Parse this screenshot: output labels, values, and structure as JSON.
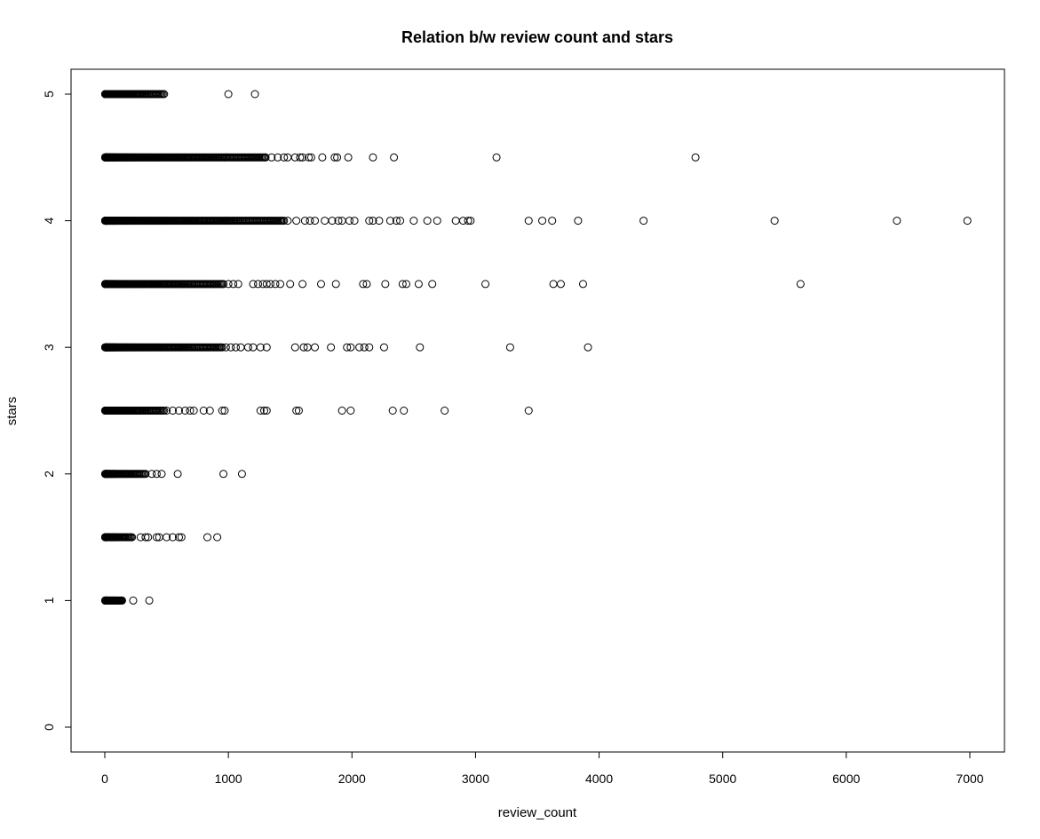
{
  "chart_data": {
    "type": "scatter",
    "title": "Relation b/w review count and stars",
    "xlabel": "review_count",
    "ylabel": "stars",
    "xlim": [
      0,
      7000
    ],
    "ylim": [
      0,
      5
    ],
    "xticks": [
      "0",
      "1000",
      "2000",
      "3000",
      "4000",
      "5000",
      "6000",
      "7000"
    ],
    "yticks": [
      "0",
      "1",
      "2",
      "3",
      "4",
      "5"
    ],
    "grid": false,
    "legend": "none",
    "dense_clusters": [
      {
        "y": 5,
        "x_from": 3,
        "x_to": 480
      },
      {
        "y": 4.5,
        "x_from": 3,
        "x_to": 1300
      },
      {
        "y": 4,
        "x_from": 3,
        "x_to": 1450
      },
      {
        "y": 3.5,
        "x_from": 3,
        "x_to": 950
      },
      {
        "y": 3,
        "x_from": 3,
        "x_to": 950
      },
      {
        "y": 2.5,
        "x_from": 3,
        "x_to": 480
      },
      {
        "y": 2,
        "x_from": 3,
        "x_to": 330
      },
      {
        "y": 1.5,
        "x_from": 3,
        "x_to": 220
      },
      {
        "y": 1,
        "x_from": 3,
        "x_to": 140
      }
    ],
    "points": [
      {
        "x": 1000,
        "y": 5
      },
      {
        "x": 1215,
        "y": 5
      },
      {
        "x": 1300,
        "y": 4.5
      },
      {
        "x": 1350,
        "y": 4.5
      },
      {
        "x": 1400,
        "y": 4.5
      },
      {
        "x": 1450,
        "y": 4.5
      },
      {
        "x": 1480,
        "y": 4.5
      },
      {
        "x": 1540,
        "y": 4.5
      },
      {
        "x": 1580,
        "y": 4.5
      },
      {
        "x": 1600,
        "y": 4.5
      },
      {
        "x": 1650,
        "y": 4.5
      },
      {
        "x": 1670,
        "y": 4.5
      },
      {
        "x": 1760,
        "y": 4.5
      },
      {
        "x": 1860,
        "y": 4.5
      },
      {
        "x": 1880,
        "y": 4.5
      },
      {
        "x": 1970,
        "y": 4.5
      },
      {
        "x": 2170,
        "y": 4.5
      },
      {
        "x": 2340,
        "y": 4.5
      },
      {
        "x": 3170,
        "y": 4.5
      },
      {
        "x": 4780,
        "y": 4.5
      },
      {
        "x": 1480,
        "y": 4
      },
      {
        "x": 1550,
        "y": 4
      },
      {
        "x": 1620,
        "y": 4
      },
      {
        "x": 1660,
        "y": 4
      },
      {
        "x": 1700,
        "y": 4
      },
      {
        "x": 1780,
        "y": 4
      },
      {
        "x": 1840,
        "y": 4
      },
      {
        "x": 1890,
        "y": 4
      },
      {
        "x": 1920,
        "y": 4
      },
      {
        "x": 1980,
        "y": 4
      },
      {
        "x": 2020,
        "y": 4
      },
      {
        "x": 2140,
        "y": 4
      },
      {
        "x": 2170,
        "y": 4
      },
      {
        "x": 2220,
        "y": 4
      },
      {
        "x": 2310,
        "y": 4
      },
      {
        "x": 2360,
        "y": 4
      },
      {
        "x": 2390,
        "y": 4
      },
      {
        "x": 2500,
        "y": 4
      },
      {
        "x": 2610,
        "y": 4
      },
      {
        "x": 2690,
        "y": 4
      },
      {
        "x": 2840,
        "y": 4
      },
      {
        "x": 2900,
        "y": 4
      },
      {
        "x": 2940,
        "y": 4
      },
      {
        "x": 2960,
        "y": 4
      },
      {
        "x": 3430,
        "y": 4
      },
      {
        "x": 3540,
        "y": 4
      },
      {
        "x": 3620,
        "y": 4
      },
      {
        "x": 3830,
        "y": 4
      },
      {
        "x": 4360,
        "y": 4
      },
      {
        "x": 5420,
        "y": 4
      },
      {
        "x": 6410,
        "y": 4
      },
      {
        "x": 6980,
        "y": 4
      },
      {
        "x": 960,
        "y": 3.5
      },
      {
        "x": 1000,
        "y": 3.5
      },
      {
        "x": 1040,
        "y": 3.5
      },
      {
        "x": 1080,
        "y": 3.5
      },
      {
        "x": 1200,
        "y": 3.5
      },
      {
        "x": 1240,
        "y": 3.5
      },
      {
        "x": 1280,
        "y": 3.5
      },
      {
        "x": 1310,
        "y": 3.5
      },
      {
        "x": 1340,
        "y": 3.5
      },
      {
        "x": 1380,
        "y": 3.5
      },
      {
        "x": 1420,
        "y": 3.5
      },
      {
        "x": 1500,
        "y": 3.5
      },
      {
        "x": 1600,
        "y": 3.5
      },
      {
        "x": 1750,
        "y": 3.5
      },
      {
        "x": 1870,
        "y": 3.5
      },
      {
        "x": 2090,
        "y": 3.5
      },
      {
        "x": 2120,
        "y": 3.5
      },
      {
        "x": 2270,
        "y": 3.5
      },
      {
        "x": 2410,
        "y": 3.5
      },
      {
        "x": 2440,
        "y": 3.5
      },
      {
        "x": 2540,
        "y": 3.5
      },
      {
        "x": 2650,
        "y": 3.5
      },
      {
        "x": 3080,
        "y": 3.5
      },
      {
        "x": 3630,
        "y": 3.5
      },
      {
        "x": 3690,
        "y": 3.5
      },
      {
        "x": 3870,
        "y": 3.5
      },
      {
        "x": 5630,
        "y": 3.5
      },
      {
        "x": 980,
        "y": 3
      },
      {
        "x": 1020,
        "y": 3
      },
      {
        "x": 1060,
        "y": 3
      },
      {
        "x": 1100,
        "y": 3
      },
      {
        "x": 1160,
        "y": 3
      },
      {
        "x": 1200,
        "y": 3
      },
      {
        "x": 1260,
        "y": 3
      },
      {
        "x": 1310,
        "y": 3
      },
      {
        "x": 1540,
        "y": 3
      },
      {
        "x": 1610,
        "y": 3
      },
      {
        "x": 1640,
        "y": 3
      },
      {
        "x": 1700,
        "y": 3
      },
      {
        "x": 1830,
        "y": 3
      },
      {
        "x": 1960,
        "y": 3
      },
      {
        "x": 1990,
        "y": 3
      },
      {
        "x": 2060,
        "y": 3
      },
      {
        "x": 2100,
        "y": 3
      },
      {
        "x": 2140,
        "y": 3
      },
      {
        "x": 2260,
        "y": 3
      },
      {
        "x": 2550,
        "y": 3
      },
      {
        "x": 3280,
        "y": 3
      },
      {
        "x": 3910,
        "y": 3
      },
      {
        "x": 500,
        "y": 2.5
      },
      {
        "x": 550,
        "y": 2.5
      },
      {
        "x": 600,
        "y": 2.5
      },
      {
        "x": 650,
        "y": 2.5
      },
      {
        "x": 690,
        "y": 2.5
      },
      {
        "x": 720,
        "y": 2.5
      },
      {
        "x": 800,
        "y": 2.5
      },
      {
        "x": 850,
        "y": 2.5
      },
      {
        "x": 950,
        "y": 2.5
      },
      {
        "x": 970,
        "y": 2.5
      },
      {
        "x": 1260,
        "y": 2.5
      },
      {
        "x": 1290,
        "y": 2.5
      },
      {
        "x": 1310,
        "y": 2.5
      },
      {
        "x": 1550,
        "y": 2.5
      },
      {
        "x": 1570,
        "y": 2.5
      },
      {
        "x": 1920,
        "y": 2.5
      },
      {
        "x": 1990,
        "y": 2.5
      },
      {
        "x": 2330,
        "y": 2.5
      },
      {
        "x": 2420,
        "y": 2.5
      },
      {
        "x": 2750,
        "y": 2.5
      },
      {
        "x": 3430,
        "y": 2.5
      },
      {
        "x": 380,
        "y": 2
      },
      {
        "x": 420,
        "y": 2
      },
      {
        "x": 460,
        "y": 2
      },
      {
        "x": 590,
        "y": 2
      },
      {
        "x": 960,
        "y": 2
      },
      {
        "x": 1110,
        "y": 2
      },
      {
        "x": 290,
        "y": 1.5
      },
      {
        "x": 330,
        "y": 1.5
      },
      {
        "x": 350,
        "y": 1.5
      },
      {
        "x": 420,
        "y": 1.5
      },
      {
        "x": 440,
        "y": 1.5
      },
      {
        "x": 500,
        "y": 1.5
      },
      {
        "x": 550,
        "y": 1.5
      },
      {
        "x": 600,
        "y": 1.5
      },
      {
        "x": 620,
        "y": 1.5
      },
      {
        "x": 830,
        "y": 1.5
      },
      {
        "x": 910,
        "y": 1.5
      },
      {
        "x": 230,
        "y": 1
      },
      {
        "x": 360,
        "y": 1
      }
    ]
  }
}
